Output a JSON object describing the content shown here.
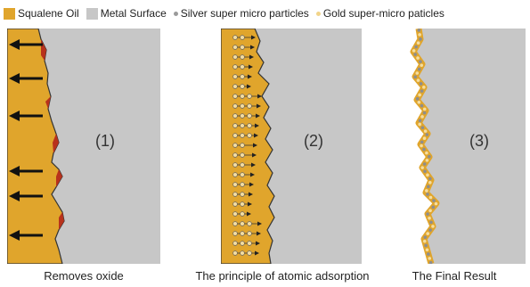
{
  "legend": [
    {
      "label": "Squalene Oil",
      "color": "#E0A52C",
      "kind": "swatch"
    },
    {
      "label": "Metal Surface",
      "color": "#C7C7C7",
      "kind": "swatch"
    },
    {
      "label": "Silver super micro particles",
      "color": "#9A9A9A",
      "kind": "dot"
    },
    {
      "label": "Gold super-micro paticles",
      "color": "#F2D48A",
      "kind": "dot"
    }
  ],
  "panels": [
    {
      "id": "1",
      "number": "(1)",
      "caption": "Removes oxide"
    },
    {
      "id": "2",
      "number": "(2)",
      "caption": "The principle of atomic adsorption"
    },
    {
      "id": "3",
      "number": "(3)",
      "caption": "The Final Result"
    }
  ],
  "colors": {
    "oil": "#E0A52C",
    "metal": "#C7C7C7",
    "oxide": "#B8321C",
    "silver": "#8E8E8E",
    "gold": "#F4DDA0",
    "arrow": "#111111"
  }
}
